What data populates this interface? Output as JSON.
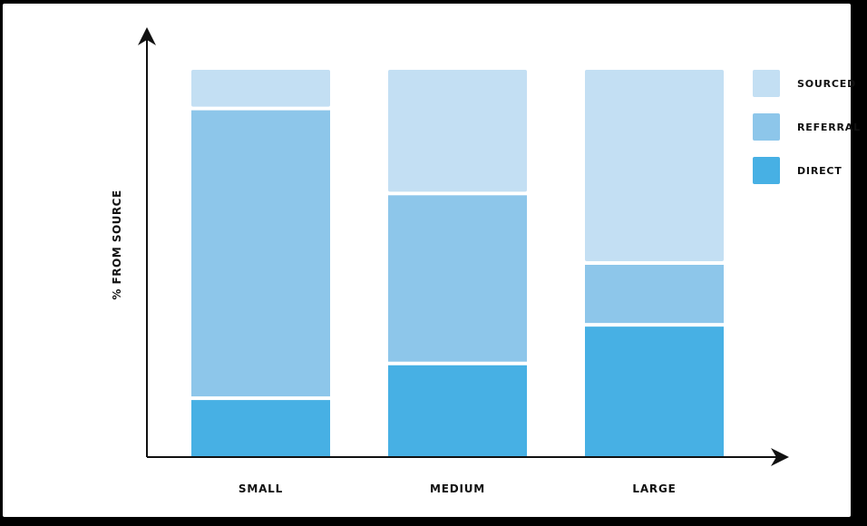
{
  "chart_data": {
    "type": "bar",
    "stacked": true,
    "normalized": true,
    "categories": [
      "SMALL",
      "MEDIUM",
      "LARGE"
    ],
    "series": [
      {
        "name": "DIRECT",
        "color": "#47b0e4",
        "values": [
          15,
          24,
          34
        ]
      },
      {
        "name": "REFERRAL",
        "color": "#8dc6ea",
        "values": [
          75,
          44,
          16
        ]
      },
      {
        "name": "SOURCED",
        "color": "#c3dff3",
        "values": [
          10,
          32,
          50
        ]
      }
    ],
    "title": "",
    "xlabel": "",
    "ylabel": "% FROM SOURCE",
    "ylim": [
      0,
      100
    ],
    "grid": false,
    "legend": "right",
    "legend_order": [
      "SOURCED",
      "REFERRAL",
      "DIRECT"
    ]
  }
}
